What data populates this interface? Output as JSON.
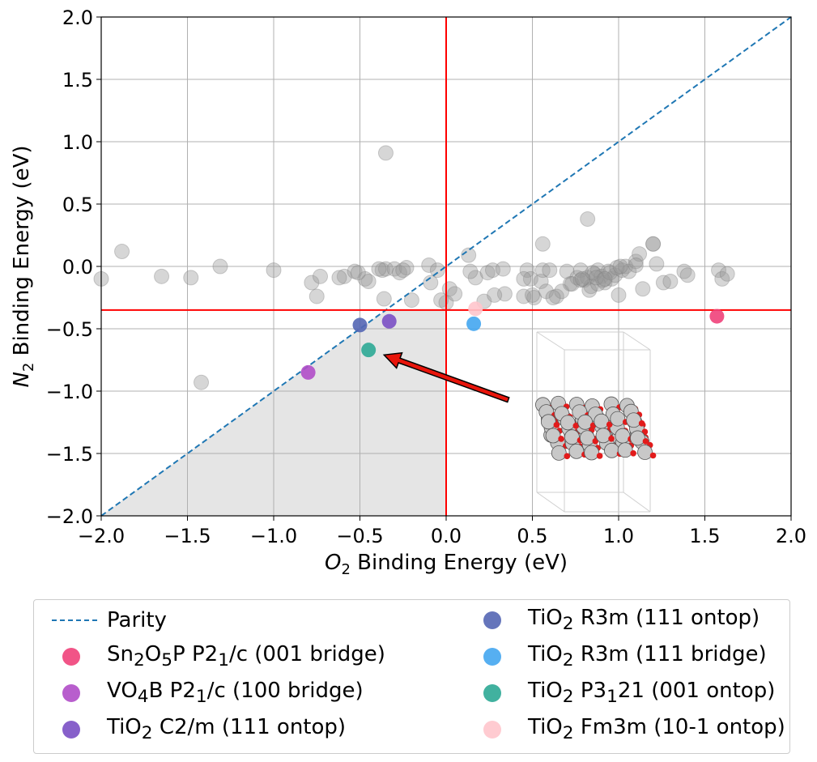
{
  "chart_data": {
    "type": "scatter",
    "xlabel_main": "O",
    "xlabel_sub": "2",
    "xlabel_rest": " Binding Energy (eV)",
    "ylabel_main": "N",
    "ylabel_sub": "2",
    "ylabel_rest": " Binding Energy (eV)",
    "xlim": [
      -2.0,
      2.0
    ],
    "ylim": [
      -2.0,
      2.0
    ],
    "xticks": [
      "−2.0",
      "−1.5",
      "−1.0",
      "−0.5",
      "0.0",
      "0.5",
      "1.0",
      "1.5",
      "2.0"
    ],
    "yticks": [
      "−2.0",
      "−1.5",
      "−1.0",
      "−0.5",
      "0.0",
      "0.5",
      "1.0",
      "1.5",
      "2.0"
    ],
    "grid": true,
    "threshold_x": 0.0,
    "threshold_y": -0.35,
    "parity_line": true,
    "highlight_region": "O2 < 0 and N2 < -0.35 and N2 < O2",
    "arrow": {
      "from": [
        0.36,
        -1.07
      ],
      "to": [
        -0.36,
        -0.71
      ]
    },
    "inset": "atomic structure illustration (grey and red spheres)",
    "background_points": {
      "color": "#999999",
      "x": [
        -2.0,
        -1.88,
        -1.65,
        -1.48,
        -1.31,
        -1.0,
        -0.78,
        -0.75,
        -0.73,
        -0.59,
        -0.53,
        -0.47,
        -0.45,
        -0.37,
        -0.35,
        -0.3,
        -0.27,
        -0.2,
        -0.1,
        -0.05,
        -0.03,
        0.0,
        0.02,
        0.05,
        0.13,
        0.17,
        0.22,
        0.24,
        0.27,
        0.33,
        0.34,
        0.45,
        0.47,
        0.49,
        0.51,
        0.55,
        0.56,
        0.58,
        0.64,
        0.67,
        0.7,
        0.72,
        0.76,
        0.78,
        0.8,
        0.82,
        0.84,
        0.86,
        0.88,
        0.9,
        0.92,
        0.94,
        0.96,
        0.98,
        1.0,
        1.02,
        1.04,
        1.06,
        1.1,
        1.12,
        1.14,
        1.2,
        1.22,
        1.26,
        1.3,
        1.38,
        1.4,
        1.58,
        1.6,
        1.63,
        -0.51,
        -0.62,
        -0.36,
        -0.39,
        -0.23,
        -0.09,
        0.14,
        -1.42,
        0.82,
        0.56,
        0.83,
        0.88,
        0.91,
        0.95,
        0.85,
        0.99,
        1.1,
        0.62,
        0.73,
        0.78,
        0.87,
        -0.25,
        0.28,
        0.45,
        0.5,
        0.6,
        0.79,
        0.92,
        1.01,
        1.2
      ],
      "y": [
        -0.1,
        0.12,
        -0.08,
        -0.09,
        0.0,
        -0.03,
        -0.13,
        -0.24,
        -0.08,
        -0.08,
        -0.04,
        -0.1,
        -0.12,
        -0.03,
        -0.02,
        -0.02,
        -0.05,
        -0.27,
        0.01,
        -0.03,
        -0.27,
        -0.29,
        -0.18,
        -0.22,
        0.09,
        -0.09,
        -0.28,
        -0.05,
        -0.03,
        -0.02,
        -0.22,
        -0.24,
        -0.03,
        -0.1,
        -0.25,
        -0.12,
        -0.03,
        -0.2,
        -0.24,
        -0.2,
        -0.04,
        -0.14,
        -0.09,
        -0.03,
        -0.11,
        -0.09,
        -0.16,
        -0.06,
        -0.03,
        -0.08,
        -0.13,
        -0.04,
        -0.1,
        -0.07,
        -0.23,
        -0.03,
        0.0,
        -0.04,
        0.04,
        0.1,
        -0.18,
        0.18,
        0.02,
        -0.13,
        -0.12,
        -0.04,
        -0.07,
        -0.03,
        -0.1,
        -0.06,
        -0.05,
        -0.09,
        -0.26,
        -0.02,
        -0.01,
        -0.13,
        -0.04,
        -0.93,
        0.38,
        0.18,
        -0.19,
        -0.14,
        -0.11,
        -0.05,
        -0.05,
        -0.01,
        0.01,
        -0.25,
        -0.14,
        -0.11,
        -0.09,
        -0.03,
        -0.23,
        -0.1,
        -0.23,
        -0.03,
        -0.1,
        -0.1,
        0.0,
        0.18
      ]
    },
    "outlier_point": {
      "x": -0.35,
      "y": 0.91
    },
    "series": [
      {
        "name_html": "Sn<sub>2</sub>O<sub>5</sub>P P2<sub>1</sub>/c (001 bridge)",
        "color": "#f0417a",
        "x": [
          1.57
        ],
        "y": [
          -0.4
        ]
      },
      {
        "name_html": "VO<sub>4</sub>B P2<sub>1</sub>/c (100 bridge)",
        "color": "#b04cc8",
        "x": [
          -0.8
        ],
        "y": [
          -0.85
        ]
      },
      {
        "name_html": "TiO<sub>2</sub> C2/m (111 ontop)",
        "color": "#7a4fc4",
        "x": [
          -0.33
        ],
        "y": [
          -0.44
        ]
      },
      {
        "name_html": "TiO<sub>2</sub> R3m (111 ontop)",
        "color": "#5466b4",
        "x": [
          -0.5
        ],
        "y": [
          -0.47
        ]
      },
      {
        "name_html": "TiO<sub>2</sub> R3m (111 bridge)",
        "color": "#44a6f0",
        "x": [
          0.16
        ],
        "y": [
          -0.46
        ]
      },
      {
        "name_html": "TiO<sub>2</sub> P3<sub>1</sub>21 (001 ontop)",
        "color": "#2ca895",
        "x": [
          -0.45
        ],
        "y": [
          -0.67
        ]
      },
      {
        "name_html": "TiO<sub>2</sub> Fm3m (10-1 ontop)",
        "color": "#ffc5cc",
        "x": [
          0.17
        ],
        "y": [
          -0.34
        ]
      }
    ]
  },
  "legend": {
    "parity_label": "Parity",
    "placement": "below"
  }
}
